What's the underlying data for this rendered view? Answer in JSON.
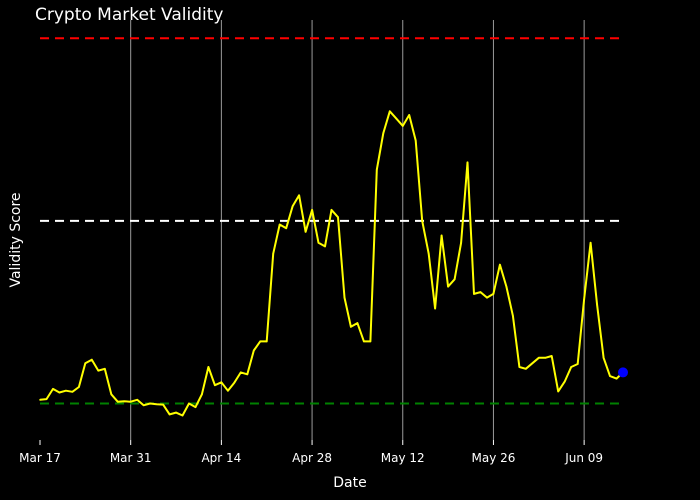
{
  "chart_data": {
    "type": "line",
    "title": "Crypto Market Validity",
    "xlabel": "Date",
    "ylabel": "Validity Score",
    "x_ticks": [
      "Mar 17",
      "Mar 31",
      "Apr 14",
      "Apr 28",
      "May 12",
      "May 26",
      "Jun 09"
    ],
    "xlim": [
      "2024-03-17",
      "2024-06-15"
    ],
    "ylim": [
      -0.1,
      1.05
    ],
    "grid": {
      "x": true,
      "y": false
    },
    "reference_lines": [
      {
        "value": 1.0,
        "color": "#ff0000",
        "style": "dashed"
      },
      {
        "value": 0.5,
        "color": "#ffffff",
        "style": "dashed"
      },
      {
        "value": 0.0,
        "color": "#008000",
        "style": "dashed"
      }
    ],
    "series": [
      {
        "color": "#ffff00",
        "x": [
          "2024-03-17",
          "2024-03-18",
          "2024-03-19",
          "2024-03-20",
          "2024-03-21",
          "2024-03-22",
          "2024-03-23",
          "2024-03-24",
          "2024-03-25",
          "2024-03-26",
          "2024-03-27",
          "2024-03-28",
          "2024-03-29",
          "2024-03-30",
          "2024-03-31",
          "2024-04-01",
          "2024-04-02",
          "2024-04-03",
          "2024-04-04",
          "2024-04-05",
          "2024-04-06",
          "2024-04-07",
          "2024-04-08",
          "2024-04-09",
          "2024-04-10",
          "2024-04-11",
          "2024-04-12",
          "2024-04-13",
          "2024-04-14",
          "2024-04-15",
          "2024-04-16",
          "2024-04-17",
          "2024-04-18",
          "2024-04-19",
          "2024-04-20",
          "2024-04-21",
          "2024-04-22",
          "2024-04-23",
          "2024-04-24",
          "2024-04-25",
          "2024-04-26",
          "2024-04-27",
          "2024-04-28",
          "2024-04-29",
          "2024-04-30",
          "2024-05-01",
          "2024-05-02",
          "2024-05-03",
          "2024-05-04",
          "2024-05-05",
          "2024-05-06",
          "2024-05-07",
          "2024-05-08",
          "2024-05-09",
          "2024-05-10",
          "2024-05-11",
          "2024-05-12",
          "2024-05-13",
          "2024-05-14",
          "2024-05-15",
          "2024-05-16",
          "2024-05-17",
          "2024-05-18",
          "2024-05-19",
          "2024-05-20",
          "2024-05-21",
          "2024-05-22",
          "2024-05-23",
          "2024-05-24",
          "2024-05-25",
          "2024-05-26",
          "2024-05-27",
          "2024-05-28",
          "2024-05-29",
          "2024-05-30",
          "2024-05-31",
          "2024-06-01",
          "2024-06-02",
          "2024-06-03",
          "2024-06-04",
          "2024-06-05",
          "2024-06-06",
          "2024-06-07",
          "2024-06-08",
          "2024-06-09",
          "2024-06-10",
          "2024-06-11",
          "2024-06-12",
          "2024-06-13",
          "2024-06-14",
          "2024-06-15"
        ],
        "y": [
          0.01,
          0.012,
          0.04,
          0.03,
          0.035,
          0.032,
          0.045,
          0.11,
          0.12,
          0.09,
          0.095,
          0.025,
          0.005,
          0.006,
          0.005,
          0.01,
          -0.005,
          0.0,
          -0.002,
          -0.003,
          -0.03,
          -0.025,
          -0.033,
          0.0,
          -0.01,
          0.025,
          0.1,
          0.05,
          0.058,
          0.035,
          0.057,
          0.085,
          0.08,
          0.145,
          0.17,
          0.17,
          0.41,
          0.49,
          0.48,
          0.54,
          0.57,
          0.47,
          0.53,
          0.44,
          0.43,
          0.53,
          0.51,
          0.29,
          0.21,
          0.22,
          0.17,
          0.17,
          0.64,
          0.74,
          0.8,
          0.78,
          0.76,
          0.79,
          0.72,
          0.5,
          0.41,
          0.26,
          0.46,
          0.32,
          0.34,
          0.44,
          0.66,
          0.3,
          0.305,
          0.29,
          0.3,
          0.38,
          0.32,
          0.24,
          0.1,
          0.095,
          0.11,
          0.125,
          0.125,
          0.13,
          0.033,
          0.06,
          0.1,
          0.108,
          0.285,
          0.44,
          0.27,
          0.125,
          0.075,
          0.068,
          0.085
        ]
      }
    ],
    "last_point_marker": {
      "x": "2024-06-15",
      "y": 0.085,
      "color": "#0000ff"
    }
  }
}
